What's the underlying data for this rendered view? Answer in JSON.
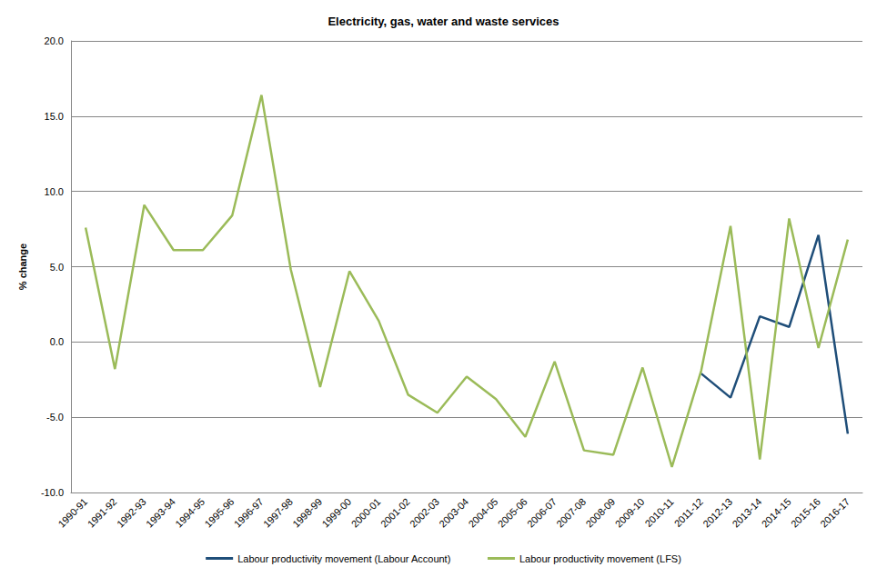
{
  "chart_data": {
    "type": "line",
    "title": "Electricity, gas, water and waste services",
    "y_label": "% change",
    "categories": [
      "1990-91",
      "1991-92",
      "1992-93",
      "1993-94",
      "1994-95",
      "1995-96",
      "1996-97",
      "1997-98",
      "1998-99",
      "1999-00",
      "2000-01",
      "2001-02",
      "2002-03",
      "2003-04",
      "2004-05",
      "2005-06",
      "2006-07",
      "2007-08",
      "2008-09",
      "2009-10",
      "2010-11",
      "2011-12",
      "2012-13",
      "2013-14",
      "2014-15",
      "2015-16",
      "2016-17"
    ],
    "series": [
      {
        "name": "Labour productivity movement (Labour Account)",
        "color": "#1f4e79",
        "marker": "none",
        "values": [
          null,
          null,
          null,
          null,
          null,
          null,
          null,
          null,
          null,
          null,
          null,
          null,
          null,
          null,
          null,
          null,
          null,
          null,
          null,
          null,
          null,
          -2.1,
          -3.7,
          1.7,
          1.0,
          7.1,
          -6.1
        ]
      },
      {
        "name": "Labour productivity movement (LFS)",
        "color": "#9bbb59",
        "marker": "none",
        "values": [
          7.6,
          -1.8,
          9.1,
          6.1,
          6.1,
          8.4,
          16.4,
          4.8,
          -3.0,
          4.7,
          1.4,
          -3.5,
          -4.7,
          -2.3,
          -3.8,
          -6.3,
          -1.3,
          -7.2,
          -7.5,
          -1.7,
          -8.3,
          -1.9,
          7.7,
          -7.8,
          8.2,
          -0.4,
          6.8
        ]
      }
    ],
    "ylim": [
      -10,
      20
    ],
    "yticks": [
      {
        "value": -10,
        "label": "-10.0"
      },
      {
        "value": -5,
        "label": "-5.0"
      },
      {
        "value": 0,
        "label": "0.0"
      },
      {
        "value": 5,
        "label": "5.0"
      },
      {
        "value": 10,
        "label": "10.0"
      },
      {
        "value": 15,
        "label": "15.0"
      },
      {
        "value": 20,
        "label": "20.0"
      }
    ],
    "grid": true,
    "legend": "bottom"
  }
}
